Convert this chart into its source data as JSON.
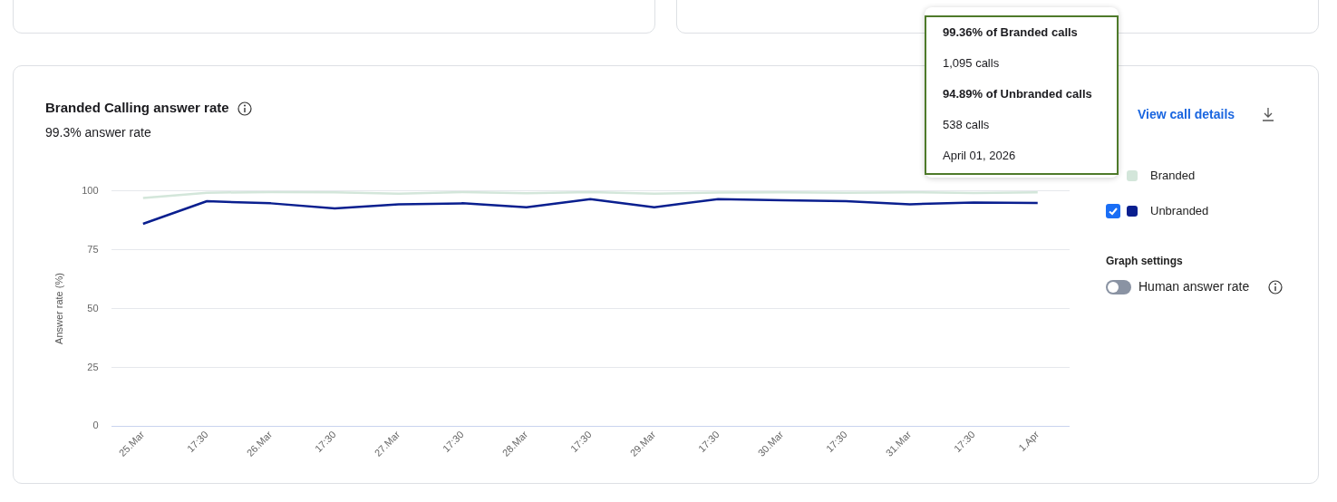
{
  "chart_data": {
    "type": "line",
    "title": "Branded Calling answer rate",
    "subtitle": "99.3% answer rate",
    "ylabel": "Answer rate (%)",
    "categories": [
      "25.Mar",
      "17:30",
      "26.Mar",
      "17:30",
      "27.Mar",
      "17:30",
      "28.Mar",
      "17:30",
      "29.Mar",
      "17:30",
      "30.Mar",
      "17:30",
      "31.Mar",
      "17:30",
      "1.Apr"
    ],
    "series": [
      {
        "name": "Branded",
        "color": "#d3e6da",
        "values": [
          97,
          99.2,
          99.5,
          99.4,
          98.8,
          99.5,
          99,
          99.5,
          98.8,
          99.3,
          99.4,
          99.2,
          99.4,
          99.1,
          99.36
        ]
      },
      {
        "name": "Unbranded",
        "color": "#0a1f8f",
        "values": [
          86,
          95.6,
          94.7,
          92.5,
          94.3,
          94.7,
          93,
          96.5,
          93,
          96.5,
          96,
          95.6,
          94.3,
          95,
          94.89
        ]
      }
    ],
    "ylim": [
      0,
      100
    ],
    "yticks": [
      0,
      25,
      50,
      75,
      100
    ],
    "grid": "y",
    "legend": "right",
    "marker": "none",
    "line_style": "solid",
    "annotations": [
      "99.36% of Branded calls",
      "1,095 calls",
      "94.89% of Unbranded calls",
      "538 calls",
      "April 01, 2026",
      "View call details",
      "Graph settings",
      "Human answer rate"
    ]
  }
}
